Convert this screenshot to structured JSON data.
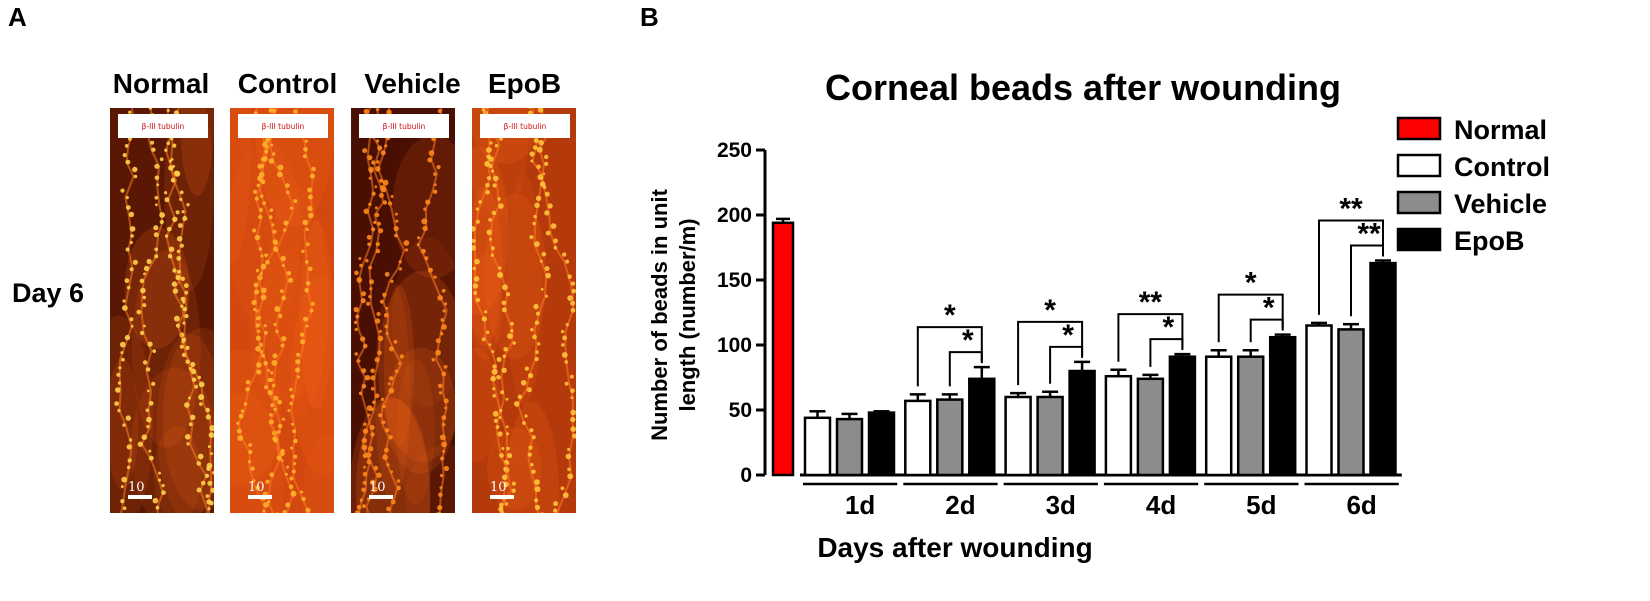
{
  "panel_a": {
    "label": "A",
    "row_label": "Day 6",
    "columns": [
      {
        "title": "Normal",
        "stain": "β-III tubulin",
        "scale": "10",
        "tone": "#5a1804",
        "glow": "#ffd24a",
        "seed": 11
      },
      {
        "title": "Control",
        "stain": "β-III tubulin",
        "scale": "10",
        "tone": "#d2480e",
        "glow": "#ffb02a",
        "seed": 23
      },
      {
        "title": "Vehicle",
        "stain": "β-III tubulin",
        "scale": "10",
        "tone": "#4a0f03",
        "glow": "#ff8a1a",
        "seed": 37
      },
      {
        "title": "EpoB",
        "stain": "β-III tubulin",
        "scale": "10",
        "tone": "#b53a0b",
        "glow": "#ffc438",
        "seed": 53
      }
    ]
  },
  "panel_b": {
    "label": "B",
    "chart_data": {
      "type": "bar",
      "title": "Corneal beads after wounding",
      "xlabel": "Days after wounding",
      "ylabel_lines": [
        "Number of beads in unit",
        "length (number/m)"
      ],
      "ylim": [
        0,
        250
      ],
      "yticks": [
        0,
        50,
        100,
        150,
        200,
        250
      ],
      "normal": {
        "name": "Normal",
        "value": 194,
        "error": 3,
        "color": "#ff0000"
      },
      "categories": [
        "1d",
        "2d",
        "3d",
        "4d",
        "5d",
        "6d"
      ],
      "series": [
        {
          "name": "Control",
          "color": "#ffffff",
          "values": [
            44,
            57,
            60,
            76,
            91,
            115
          ],
          "errors": [
            5,
            5,
            3,
            5,
            5,
            2
          ]
        },
        {
          "name": "Vehicle",
          "color": "#8c8c8c",
          "values": [
            43,
            58,
            60,
            74,
            91,
            112
          ],
          "errors": [
            4,
            4,
            4,
            3,
            5,
            4
          ]
        },
        {
          "name": "EpoB",
          "color": "#000000",
          "values": [
            48,
            74,
            80,
            91,
            106,
            163
          ],
          "errors": [
            1,
            9,
            7,
            2,
            2,
            2
          ]
        }
      ],
      "legend": [
        "Normal",
        "Control",
        "Vehicle",
        "EpoB"
      ],
      "significance": [
        {
          "day": "2d",
          "outer": "*",
          "inner": "*"
        },
        {
          "day": "3d",
          "outer": "*",
          "inner": "*"
        },
        {
          "day": "4d",
          "outer": "**",
          "inner": "*"
        },
        {
          "day": "5d",
          "outer": "*",
          "inner": "*"
        },
        {
          "day": "6d",
          "outer": "**",
          "inner": "**"
        }
      ]
    }
  }
}
